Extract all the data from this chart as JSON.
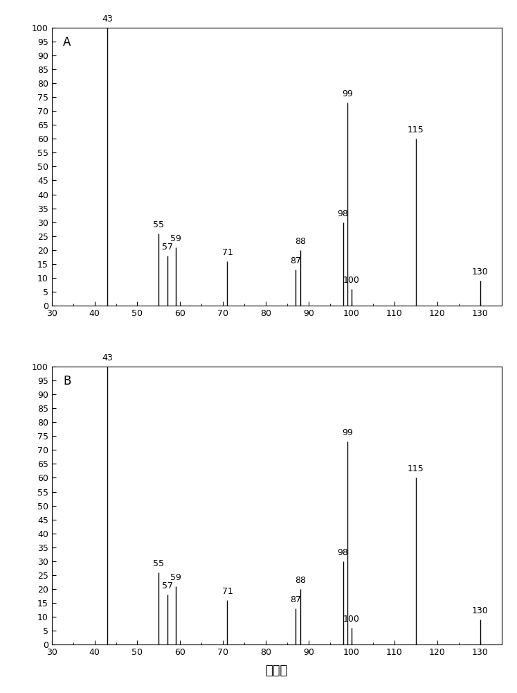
{
  "panel_A": {
    "label": "A",
    "peaks": [
      {
        "mz": 43,
        "intensity": 100
      },
      {
        "mz": 55,
        "intensity": 26
      },
      {
        "mz": 57,
        "intensity": 18
      },
      {
        "mz": 59,
        "intensity": 21
      },
      {
        "mz": 71,
        "intensity": 16
      },
      {
        "mz": 87,
        "intensity": 13
      },
      {
        "mz": 88,
        "intensity": 20
      },
      {
        "mz": 98,
        "intensity": 30
      },
      {
        "mz": 99,
        "intensity": 73
      },
      {
        "mz": 100,
        "intensity": 6
      },
      {
        "mz": 115,
        "intensity": 60
      },
      {
        "mz": 130,
        "intensity": 9
      }
    ]
  },
  "panel_B": {
    "label": "B",
    "peaks": [
      {
        "mz": 43,
        "intensity": 100
      },
      {
        "mz": 55,
        "intensity": 26
      },
      {
        "mz": 57,
        "intensity": 18
      },
      {
        "mz": 59,
        "intensity": 21
      },
      {
        "mz": 71,
        "intensity": 16
      },
      {
        "mz": 87,
        "intensity": 13
      },
      {
        "mz": 88,
        "intensity": 20
      },
      {
        "mz": 98,
        "intensity": 30
      },
      {
        "mz": 99,
        "intensity": 73
      },
      {
        "mz": 100,
        "intensity": 6
      },
      {
        "mz": 115,
        "intensity": 60
      },
      {
        "mz": 130,
        "intensity": 9
      }
    ]
  },
  "xlim": [
    30,
    135
  ],
  "ylim": [
    0,
    100
  ],
  "xlabel": "质荷比",
  "xlabel_fontsize": 13,
  "tick_fontsize": 9,
  "label_fontsize": 12,
  "peak_label_fontsize": 9,
  "line_color": "black",
  "line_width": 1.0,
  "yticks": [
    0,
    5,
    10,
    15,
    20,
    25,
    30,
    35,
    40,
    45,
    50,
    55,
    60,
    65,
    70,
    75,
    80,
    85,
    90,
    95,
    100
  ],
  "xticks": [
    30,
    40,
    50,
    60,
    70,
    80,
    90,
    100,
    110,
    120,
    130
  ]
}
